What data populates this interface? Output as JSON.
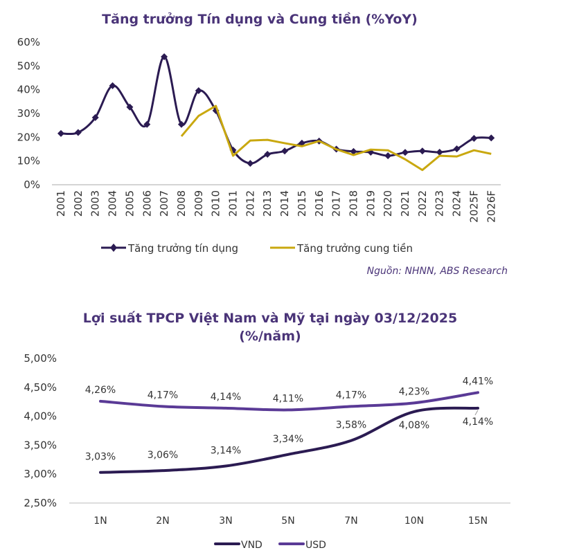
{
  "chart_data": [
    {
      "type": "line",
      "title": "Tăng trưởng Tín dụng và Cung tiền (%YoY)",
      "categories": [
        "2001",
        "2002",
        "2003",
        "2004",
        "2005",
        "2006",
        "2007",
        "2008",
        "2009",
        "2010",
        "2011",
        "2012",
        "2013",
        "2014",
        "2015",
        "2016",
        "2017",
        "2018",
        "2019",
        "2020",
        "2021",
        "2022",
        "2023",
        "2024",
        "2025F",
        "2026F"
      ],
      "yticks": [
        "0%",
        "10%",
        "20%",
        "30%",
        "40%",
        "50%",
        "60%"
      ],
      "ylim": [
        0,
        60
      ],
      "legend_position": "bottom",
      "series": [
        {
          "name": "Tăng trưởng tín dụng",
          "color": "#2b1b52",
          "marker": "diamond",
          "smooth": true,
          "values": [
            21.6,
            22,
            28.3,
            41.7,
            32.7,
            25.4,
            53.9,
            25.4,
            39.6,
            31.2,
            14.6,
            9,
            12.8,
            14.2,
            17.5,
            18.4,
            15,
            14,
            13.7,
            12.2,
            13.6,
            14.2,
            13.7,
            15.1,
            19.5,
            19.7
          ]
        },
        {
          "name": "Tăng trưởng cung tiền",
          "color": "#c9a80f",
          "marker": "none",
          "smooth": false,
          "values": [
            null,
            null,
            null,
            null,
            null,
            null,
            null,
            20.4,
            29,
            33.2,
            12.2,
            18.6,
            18.9,
            17.5,
            16.2,
            18.4,
            14.9,
            12.5,
            14.8,
            14.5,
            10.7,
            6.2,
            12.2,
            11.9,
            14.5,
            13
          ]
        }
      ],
      "source": "Nguồn: NHNN, ABS Research"
    },
    {
      "type": "line",
      "title": "Lợi suất TPCP Việt Nam và Mỹ tại ngày 03/12/2025",
      "subtitle": "(%/năm)",
      "categories": [
        "1N",
        "2N",
        "3N",
        "5N",
        "7N",
        "10N",
        "15N"
      ],
      "yticks": [
        "2,50%",
        "3,00%",
        "3,50%",
        "4,00%",
        "4,50%",
        "5,00%"
      ],
      "ylim": [
        2.5,
        5.0
      ],
      "legend_position": "bottom",
      "series": [
        {
          "name": "VND",
          "color": "#2b1b52",
          "values": [
            3.03,
            3.06,
            3.14,
            3.34,
            3.58,
            4.08,
            4.14
          ],
          "labels": [
            "3,03%",
            "3,06%",
            "3,14%",
            "3,34%",
            "3,58%",
            "4,08%",
            "4,14%"
          ]
        },
        {
          "name": "USD",
          "color": "#5a3a96",
          "values": [
            4.26,
            4.17,
            4.14,
            4.11,
            4.17,
            4.23,
            4.41
          ],
          "labels": [
            "4,26%",
            "4,17%",
            "4,14%",
            "4,11%",
            "4,17%",
            "4,23%",
            "4,41%"
          ]
        }
      ]
    }
  ]
}
